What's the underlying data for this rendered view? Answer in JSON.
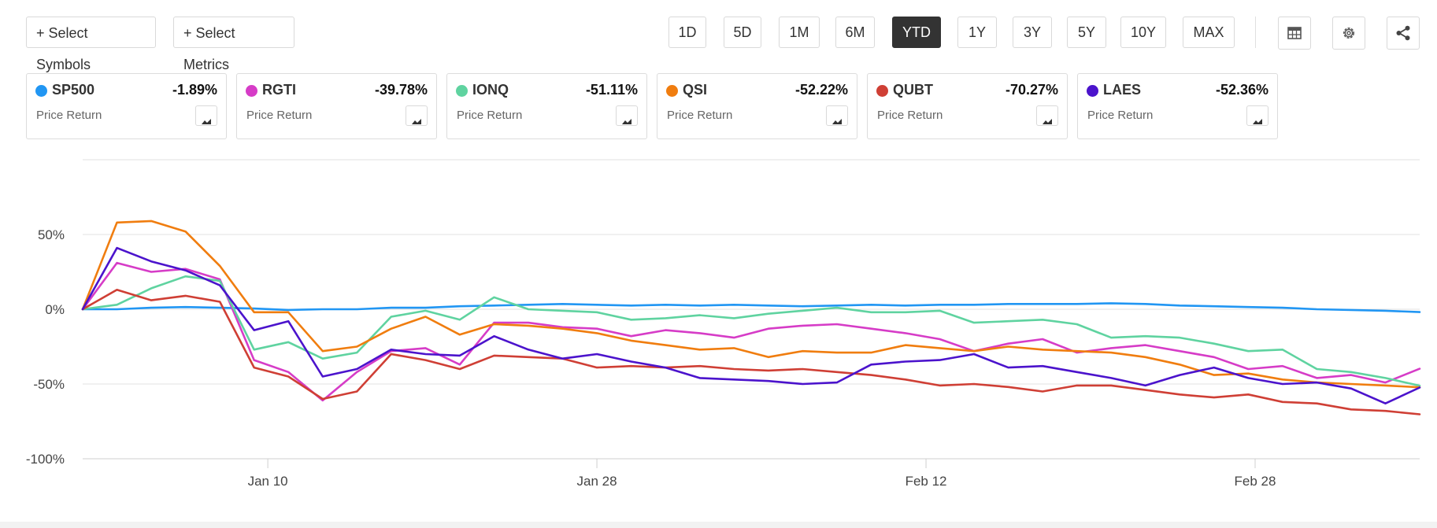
{
  "toolbar": {
    "select_symbols": "+ Select Symbols",
    "select_metrics": "+ Select Metrics",
    "ranges": [
      "1D",
      "5D",
      "1M",
      "6M",
      "YTD",
      "1Y",
      "3Y",
      "5Y",
      "10Y",
      "MAX"
    ],
    "active_range": "YTD",
    "icons": [
      "table-icon",
      "gear-icon",
      "share-icon"
    ]
  },
  "cards": [
    {
      "symbol": "SP500",
      "value": "-1.89%",
      "metric": "Price Return",
      "color": "#2196f3"
    },
    {
      "symbol": "RGTI",
      "value": "-39.78%",
      "metric": "Price Return",
      "color": "#d63cc7"
    },
    {
      "symbol": "IONQ",
      "value": "-51.11%",
      "metric": "Price Return",
      "color": "#5fd3a0"
    },
    {
      "symbol": "QSI",
      "value": "-52.22%",
      "metric": "Price Return",
      "color": "#f07d0f"
    },
    {
      "symbol": "QUBT",
      "value": "-70.27%",
      "metric": "Price Return",
      "color": "#cf3f35"
    },
    {
      "symbol": "LAES",
      "value": "-52.36%",
      "metric": "Price Return",
      "color": "#4b13cc"
    }
  ],
  "chart_data": {
    "type": "line",
    "title": "",
    "xlabel": "",
    "ylabel": "",
    "ylim": [
      -100,
      100
    ],
    "y_ticks": [
      50,
      0,
      -50,
      -100
    ],
    "y_tick_labels": [
      "50%",
      "0%",
      "-50%",
      "-100%"
    ],
    "x_tick_labels": [
      "Jan 10",
      "Jan 28",
      "Feb 12",
      "Feb 28"
    ],
    "x_tick_index": [
      5.4,
      15,
      24.6,
      34.2
    ],
    "x_count": 40,
    "grid": true,
    "series": [
      {
        "name": "SP500",
        "color": "#2196f3",
        "values": [
          0,
          0,
          1,
          1.5,
          1,
          0.5,
          -0.5,
          0,
          0,
          1,
          1,
          2,
          2.5,
          3,
          3.5,
          3,
          2.5,
          3,
          2.5,
          3,
          2.5,
          2,
          2.5,
          3,
          2.5,
          3,
          3,
          3.5,
          3.5,
          3.5,
          4,
          3.5,
          2.5,
          2,
          1.5,
          1,
          0,
          -0.5,
          -1,
          -1.89
        ]
      },
      {
        "name": "RGTI",
        "color": "#d63cc7",
        "values": [
          0,
          31,
          25,
          27,
          20,
          -34,
          -42,
          -61,
          -42,
          -28,
          -26,
          -37,
          -9,
          -9,
          -12,
          -13,
          -18,
          -14,
          -16,
          -19,
          -13,
          -11,
          -10,
          -13,
          -16,
          -20,
          -28,
          -23,
          -20,
          -29,
          -26,
          -24,
          -28,
          -32,
          -40,
          -38,
          -46,
          -44,
          -49,
          -39.78
        ]
      },
      {
        "name": "IONQ",
        "color": "#5fd3a0",
        "values": [
          0,
          3,
          14,
          22,
          19,
          -27,
          -22,
          -33,
          -29,
          -5,
          -1,
          -7,
          8,
          0,
          -1,
          -2,
          -7,
          -6,
          -4,
          -6,
          -3,
          -1,
          1,
          -2,
          -2,
          -1,
          -9,
          -8,
          -7,
          -10,
          -19,
          -18,
          -19,
          -23,
          -28,
          -27,
          -40,
          -42,
          -46,
          -51.11
        ]
      },
      {
        "name": "QSI",
        "color": "#f07d0f",
        "values": [
          0,
          58,
          59,
          52,
          29,
          -2,
          -2,
          -28,
          -25,
          -13,
          -5,
          -17,
          -10,
          -11,
          -13,
          -16,
          -21,
          -24,
          -27,
          -26,
          -32,
          -28,
          -29,
          -29,
          -24,
          -26,
          -28,
          -25,
          -27,
          -28,
          -29,
          -32,
          -37,
          -44,
          -43,
          -47,
          -49,
          -50,
          -51,
          -52.22
        ]
      },
      {
        "name": "QUBT",
        "color": "#cf3f35",
        "values": [
          0,
          13,
          6,
          9,
          5,
          -39,
          -45,
          -60,
          -55,
          -30,
          -34,
          -40,
          -31,
          -32,
          -33,
          -39,
          -38,
          -39,
          -38,
          -40,
          -41,
          -40,
          -42,
          -44,
          -47,
          -51,
          -50,
          -52,
          -55,
          -51,
          -51,
          -54,
          -57,
          -59,
          -57,
          -62,
          -63,
          -67,
          -68,
          -70.27
        ]
      },
      {
        "name": "LAES",
        "color": "#4b13cc",
        "values": [
          0,
          41,
          32,
          26,
          16,
          -14,
          -8,
          -45,
          -40,
          -27,
          -30,
          -31,
          -18,
          -27,
          -33,
          -30,
          -35,
          -39,
          -46,
          -47,
          -48,
          -50,
          -49,
          -37,
          -35,
          -34,
          -30,
          -39,
          -38,
          -42,
          -46,
          -51,
          -44,
          -39,
          -46,
          -50,
          -49,
          -53,
          -63,
          -52.36
        ]
      }
    ]
  }
}
